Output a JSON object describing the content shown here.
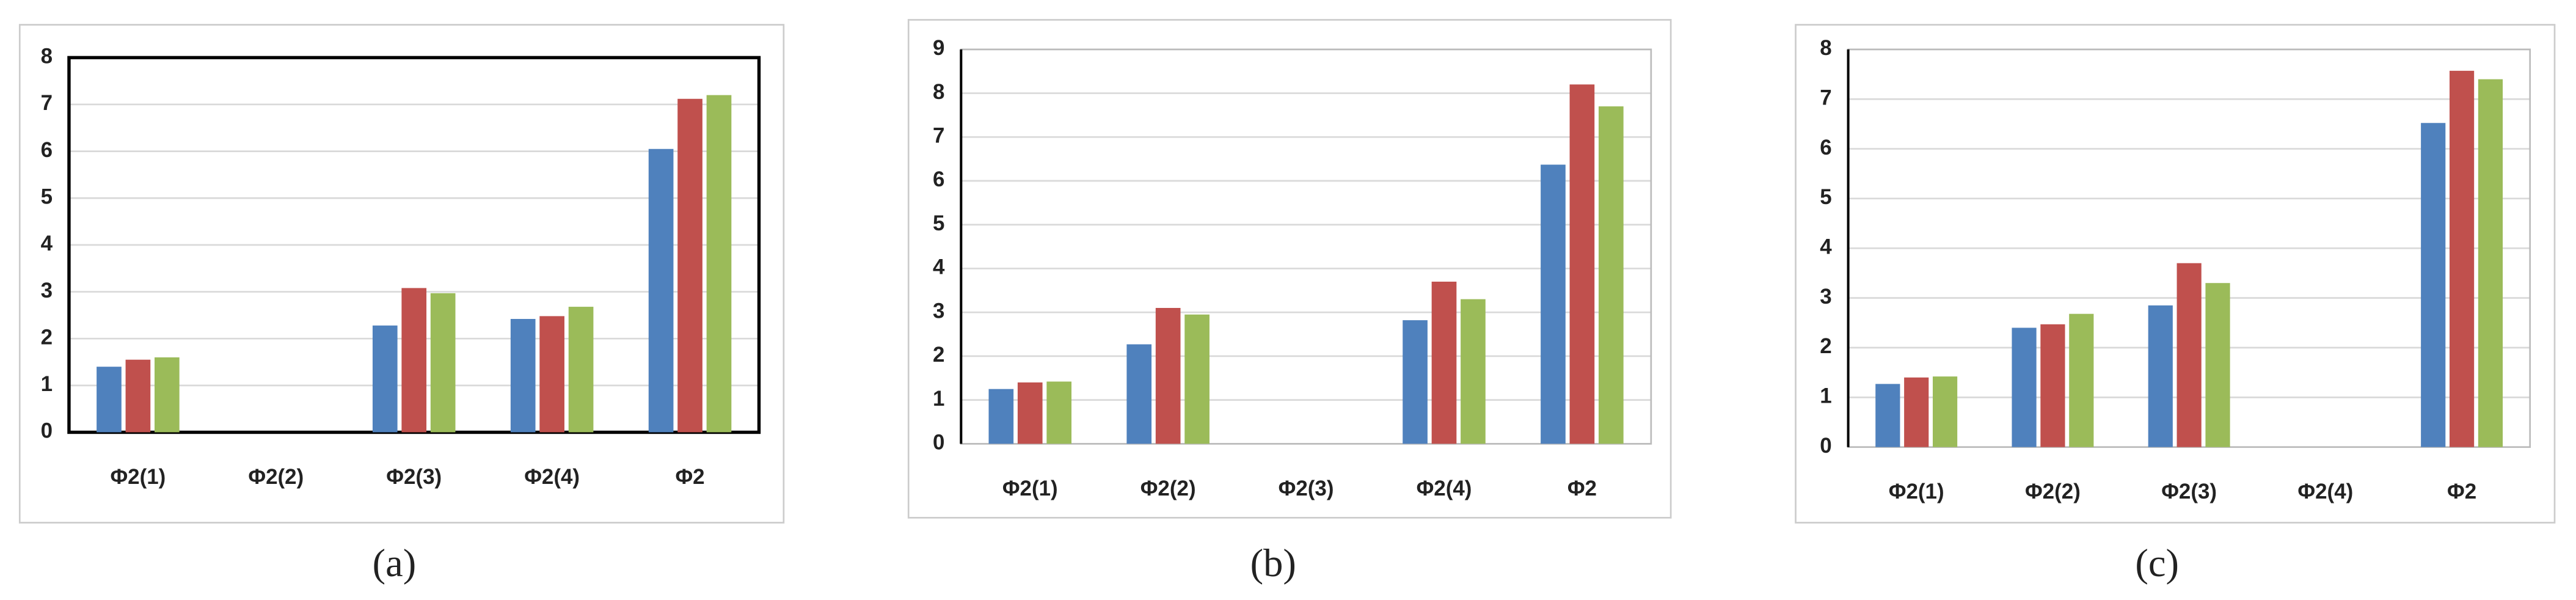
{
  "chart_data": [
    {
      "type": "bar",
      "caption": "(a)",
      "categories": [
        "Φ2(1)",
        "Φ2(2)",
        "Φ2(3)",
        "Φ2(4)",
        "Φ2"
      ],
      "series": [
        {
          "color": "#4f81bd",
          "values": [
            1.4,
            null,
            2.28,
            2.42,
            6.05
          ]
        },
        {
          "color": "#c0504d",
          "values": [
            1.55,
            null,
            3.08,
            2.48,
            7.12
          ]
        },
        {
          "color": "#9bbb59",
          "values": [
            1.6,
            null,
            2.97,
            2.68,
            7.2
          ]
        }
      ],
      "ylim": [
        0,
        8
      ],
      "yticks": [
        0,
        1,
        2,
        3,
        4,
        5,
        6,
        7,
        8
      ],
      "grid": true
    },
    {
      "type": "bar",
      "caption": "(b)",
      "categories": [
        "Φ2(1)",
        "Φ2(2)",
        "Φ2(3)",
        "Φ2(4)",
        "Φ2"
      ],
      "series": [
        {
          "color": "#4f81bd",
          "values": [
            1.25,
            2.27,
            null,
            2.82,
            6.37
          ]
        },
        {
          "color": "#c0504d",
          "values": [
            1.4,
            3.1,
            null,
            3.7,
            8.2
          ]
        },
        {
          "color": "#9bbb59",
          "values": [
            1.42,
            2.95,
            null,
            3.3,
            7.7
          ]
        }
      ],
      "ylim": [
        0,
        9
      ],
      "yticks": [
        0,
        1,
        2,
        3,
        4,
        5,
        6,
        7,
        8,
        9
      ],
      "grid": true
    },
    {
      "type": "bar",
      "caption": "(c)",
      "categories": [
        "Φ2(1)",
        "Φ2(2)",
        "Φ2(3)",
        "Φ2(4)",
        "Φ2"
      ],
      "series": [
        {
          "color": "#4f81bd",
          "values": [
            1.27,
            2.4,
            2.85,
            null,
            6.52
          ]
        },
        {
          "color": "#c0504d",
          "values": [
            1.4,
            2.47,
            3.7,
            null,
            7.57
          ]
        },
        {
          "color": "#9bbb59",
          "values": [
            1.42,
            2.68,
            3.3,
            null,
            7.4
          ]
        }
      ],
      "ylim": [
        0,
        8
      ],
      "yticks": [
        0,
        1,
        2,
        3,
        4,
        5,
        6,
        7,
        8
      ],
      "grid": true
    }
  ]
}
